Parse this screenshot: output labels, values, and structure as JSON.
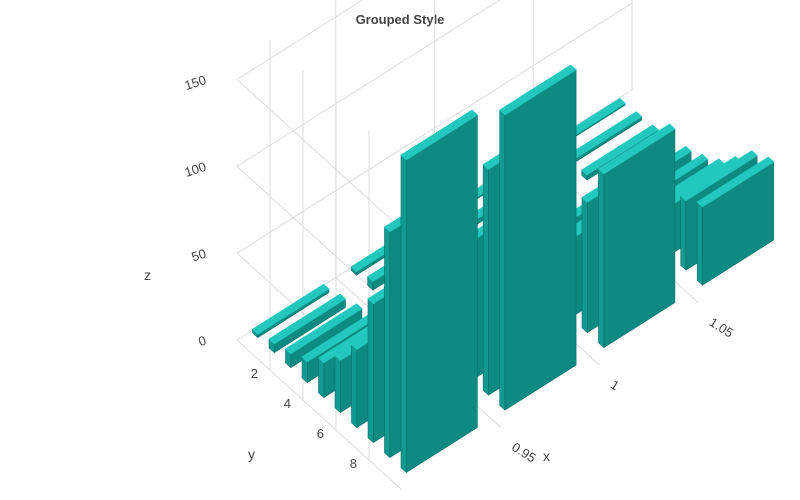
{
  "chart_data": {
    "type": "bar3d",
    "title": "Grouped Style",
    "xlabel": "x",
    "ylabel": "y",
    "zlabel": "z",
    "x_ticks": [
      "0.95",
      "1",
      "1.05"
    ],
    "y_ticks": [
      "2",
      "4",
      "6",
      "8"
    ],
    "z_ticks": [
      "0",
      "50",
      "100",
      "150"
    ],
    "z_range": [
      0,
      190
    ],
    "y_range": [
      0,
      10
    ],
    "bar_color": "#119a92",
    "edge_color": "#22c8bd",
    "grid": true,
    "grid_color": "#dddddd",
    "series": [
      {
        "x": 0.925,
        "y": [
          0,
          1,
          2,
          3,
          4,
          5,
          6,
          7,
          8,
          9
        ],
        "z": [
          2,
          5,
          8,
          12,
          20,
          30,
          45,
          80,
          130,
          180
        ]
      },
      {
        "x": 0.975,
        "y": [
          0,
          1,
          2,
          3,
          4,
          5,
          6,
          7,
          8,
          9
        ],
        "z": [
          2,
          5,
          8,
          12,
          20,
          30,
          45,
          80,
          130,
          170
        ]
      },
      {
        "x": 1.025,
        "y": [
          0,
          1,
          2,
          3,
          4,
          5,
          6,
          7,
          8,
          9
        ],
        "z": [
          1,
          3,
          5,
          8,
          12,
          18,
          28,
          45,
          75,
          100
        ]
      },
      {
        "x": 1.075,
        "y": [
          0,
          1,
          2,
          3,
          4,
          5,
          6,
          7,
          8,
          9
        ],
        "z": [
          1,
          2,
          3,
          5,
          8,
          12,
          18,
          28,
          40,
          45
        ]
      }
    ]
  }
}
